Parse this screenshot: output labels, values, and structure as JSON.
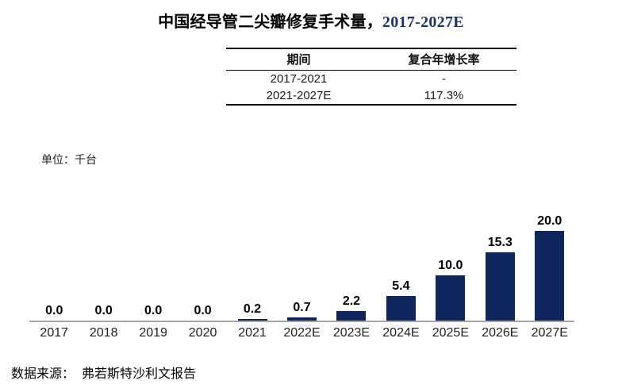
{
  "title": {
    "main": "中国经导管二尖瓣修复手术量，",
    "range": "2017-2027E",
    "range_color": "#1c3263"
  },
  "cagr_table": {
    "headers": [
      "期间",
      "复合年增长率"
    ],
    "rows": [
      [
        "2017-2021",
        "-"
      ],
      [
        "2021-2027E",
        "117.3%"
      ]
    ]
  },
  "unit_label": "单位：千台",
  "source": {
    "label": "数据来源：",
    "text": "弗若斯特沙利文报告"
  },
  "chart_data": {
    "type": "bar",
    "title": "中国经导管二尖瓣修复手术量，2017-2027E",
    "unit": "千台",
    "categories": [
      "2017",
      "2018",
      "2019",
      "2020",
      "2021",
      "2022E",
      "2023E",
      "2024E",
      "2025E",
      "2026E",
      "2027E"
    ],
    "values": [
      0.0,
      0.0,
      0.0,
      0.0,
      0.2,
      0.7,
      2.2,
      5.4,
      10.0,
      15.3,
      20.0
    ],
    "value_labels": [
      "0.0",
      "0.0",
      "0.0",
      "0.0",
      "0.2",
      "0.7",
      "2.2",
      "5.4",
      "10.0",
      "15.3",
      "20.0"
    ],
    "xlabel": "",
    "ylabel": "",
    "ylim": [
      0,
      20
    ],
    "grid": false,
    "legend": "none",
    "bar_color": "#0f265c",
    "axis_color": "#a6a6a6"
  }
}
